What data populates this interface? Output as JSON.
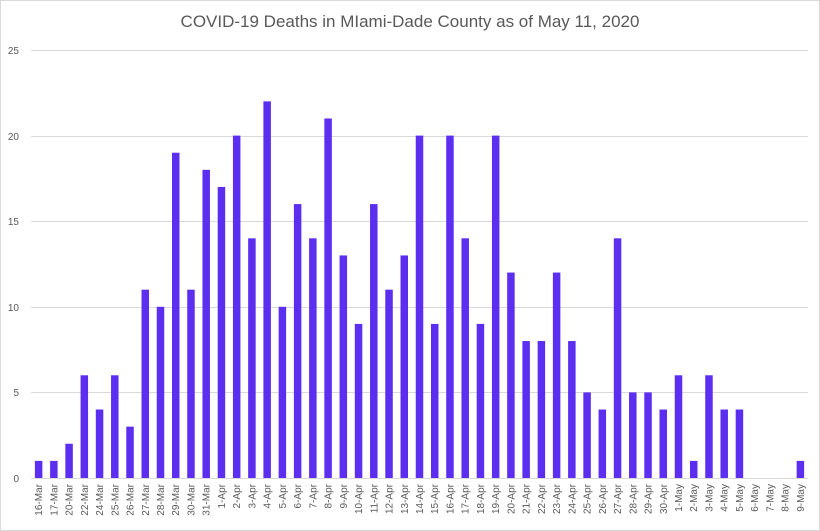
{
  "chart_data": {
    "type": "bar",
    "title": "COVID-19 Deaths in MIami-Dade County as of May 11, 2020",
    "xlabel": "",
    "ylabel": "",
    "ylim": [
      0,
      25
    ],
    "yticks": [
      0,
      5,
      10,
      15,
      20,
      25
    ],
    "grid": true,
    "legend": "none",
    "bar_color": "#5B2EF0",
    "categories": [
      "16-Mar",
      "17-Mar",
      "20-Mar",
      "22-Mar",
      "24-Mar",
      "25-Mar",
      "26-Mar",
      "27-Mar",
      "28-Mar",
      "29-Mar",
      "30-Mar",
      "31-Mar",
      "1-Apr",
      "2-Apr",
      "3-Apr",
      "4-Apr",
      "5-Apr",
      "6-Apr",
      "7-Apr",
      "8-Apr",
      "9-Apr",
      "10-Apr",
      "11-Apr",
      "12-Apr",
      "13-Apr",
      "14-Apr",
      "15-Apr",
      "16-Apr",
      "17-Apr",
      "18-Apr",
      "19-Apr",
      "20-Apr",
      "21-Apr",
      "22-Apr",
      "23-Apr",
      "24-Apr",
      "25-Apr",
      "26-Apr",
      "27-Apr",
      "28-Apr",
      "29-Apr",
      "30-Apr",
      "1-May",
      "2-May",
      "3-May",
      "4-May",
      "5-May",
      "6-May",
      "7-May",
      "8-May",
      "9-May"
    ],
    "values": [
      1,
      1,
      2,
      6,
      4,
      6,
      3,
      11,
      10,
      19,
      11,
      18,
      17,
      20,
      14,
      22,
      10,
      16,
      14,
      21,
      13,
      9,
      16,
      11,
      13,
      20,
      9,
      20,
      14,
      9,
      20,
      12,
      8,
      8,
      12,
      8,
      5,
      4,
      14,
      5,
      5,
      4,
      6,
      1,
      6,
      4,
      4,
      0,
      0,
      0,
      1
    ]
  }
}
